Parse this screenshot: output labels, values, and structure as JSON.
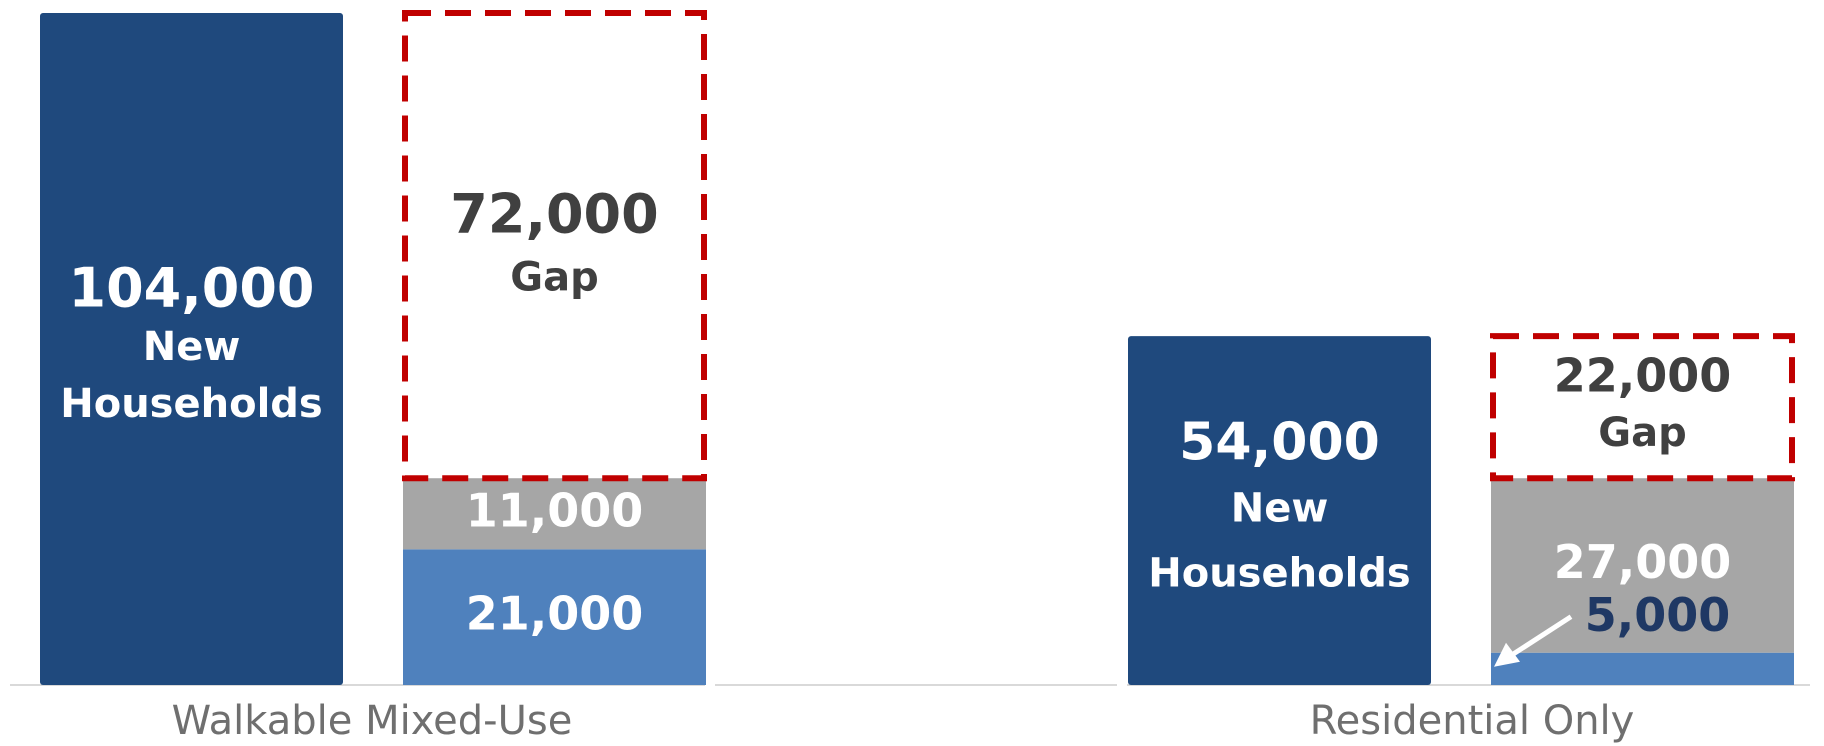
{
  "chart_data": {
    "type": "bar",
    "title": "",
    "xlabel": "",
    "ylabel": "",
    "ylim": [
      0,
      104000
    ],
    "grid": false,
    "legend": "none",
    "categories": [
      "Walkable Mixed-Use",
      "Residential Only"
    ],
    "groups": [
      {
        "category": "Walkable Mixed-Use",
        "demand": {
          "value": 104000,
          "label": "104,000",
          "text_lines": [
            "New",
            "Households"
          ]
        },
        "supply_stack": [
          {
            "value": 21000,
            "label": "21,000",
            "color": "#4f81bd"
          },
          {
            "value": 11000,
            "label": "11,000",
            "color": "#a6a6a6"
          }
        ],
        "gap": {
          "value": 72000,
          "label": "72,000",
          "text": "Gap"
        }
      },
      {
        "category": "Residential Only",
        "demand": {
          "value": 54000,
          "label": "54,000",
          "text_lines": [
            "New",
            "Households"
          ]
        },
        "supply_stack": [
          {
            "value": 5000,
            "label": "5,000",
            "color": "#4f81bd"
          },
          {
            "value": 27000,
            "label": "27,000",
            "color": "#a6a6a6"
          }
        ],
        "gap": {
          "value": 22000,
          "label": "22,000",
          "text": "Gap"
        }
      }
    ]
  },
  "colors": {
    "demand": "#1f497d",
    "supply_blue": "#4f81bd",
    "supply_gray": "#a6a6a6",
    "gap_border": "#c00000",
    "gap_text": "#404040",
    "axis": "#d9d9d9"
  }
}
